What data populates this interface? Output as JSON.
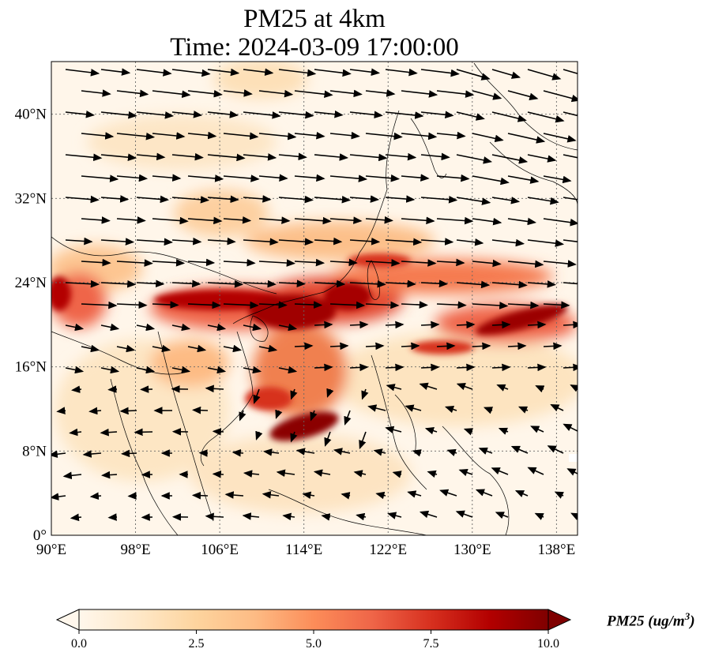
{
  "title": {
    "line1": "PM25 at 4km",
    "line2": "Time: 2024-03-09 17:00:00"
  },
  "map": {
    "lon_range": [
      90,
      140
    ],
    "lat_range": [
      0,
      45
    ],
    "lon_ticks": [
      {
        "value": 90,
        "label": "90°E"
      },
      {
        "value": 98,
        "label": "98°E"
      },
      {
        "value": 106,
        "label": "106°E"
      },
      {
        "value": 114,
        "label": "114°E"
      },
      {
        "value": 122,
        "label": "122°E"
      },
      {
        "value": 130,
        "label": "130°E"
      },
      {
        "value": 138,
        "label": "138°E"
      }
    ],
    "lat_ticks": [
      {
        "value": 0,
        "label": "0°"
      },
      {
        "value": 8,
        "label": "8°N"
      },
      {
        "value": 16,
        "label": "16°N"
      },
      {
        "value": 24,
        "label": "24°N"
      },
      {
        "value": 32,
        "label": "32°N"
      },
      {
        "value": 40,
        "label": "40°N"
      }
    ],
    "gridlines": true,
    "colormap": "OrRd",
    "palette": [
      "#fff7ec",
      "#fee8c8",
      "#fdd49e",
      "#fdbb84",
      "#fc8d59",
      "#ef6548",
      "#d7301f",
      "#b30000",
      "#7f0000"
    ]
  },
  "colorbar": {
    "label": "PM25 (ug/m",
    "label_sup": "3",
    "label_end": ")",
    "vmin": 0,
    "vmax": 10,
    "extend": "both",
    "ticks": [
      {
        "value": 0,
        "label": "0.0"
      },
      {
        "value": 2.5,
        "label": "2.5"
      },
      {
        "value": 5,
        "label": "5.0"
      },
      {
        "value": 7.5,
        "label": "7.5"
      },
      {
        "value": 10,
        "label": "10.0"
      }
    ]
  }
}
